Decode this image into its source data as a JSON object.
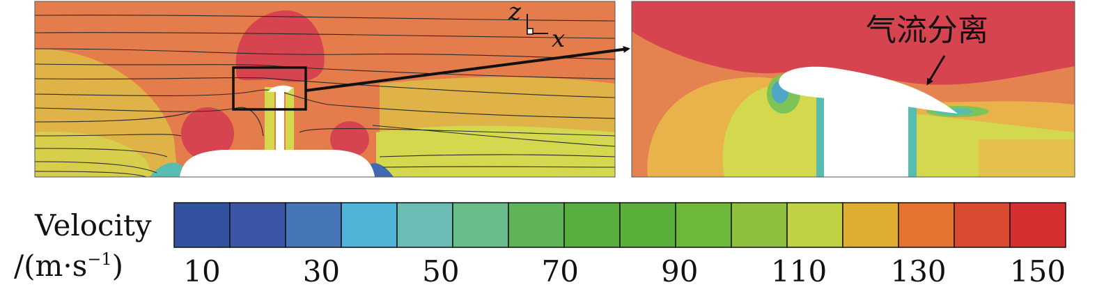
{
  "axes_indicator": {
    "z": "z",
    "x": "x"
  },
  "annotation": {
    "label": "气流分离"
  },
  "legend": {
    "title_line1": "Velocity",
    "title_line2": "/(m·s",
    "title_exp": "−1",
    "title_close": ")",
    "tick_labels": [
      "10",
      "30",
      "50",
      "70",
      "90",
      "110",
      "130",
      "150"
    ],
    "colors": [
      "#3252a0",
      "#3a56a5",
      "#4676b8",
      "#50b3d8",
      "#6abcb4",
      "#69bd8b",
      "#5fb45a",
      "#58ae3c",
      "#5aae3a",
      "#6db83a",
      "#8ec03e",
      "#c0d143",
      "#e0ad33",
      "#e3732e",
      "#d94a31",
      "#d62f31"
    ]
  },
  "colors": {
    "fast": "#d6454f",
    "high": "#e57c4b",
    "mid_high": "#e8a64a",
    "mid": "#e9c04b",
    "yellow": "#d3d84f",
    "green": "#7cc358",
    "cyan": "#58bdb0",
    "blue": "#4169b4",
    "streamline": "#2a2a2a"
  }
}
